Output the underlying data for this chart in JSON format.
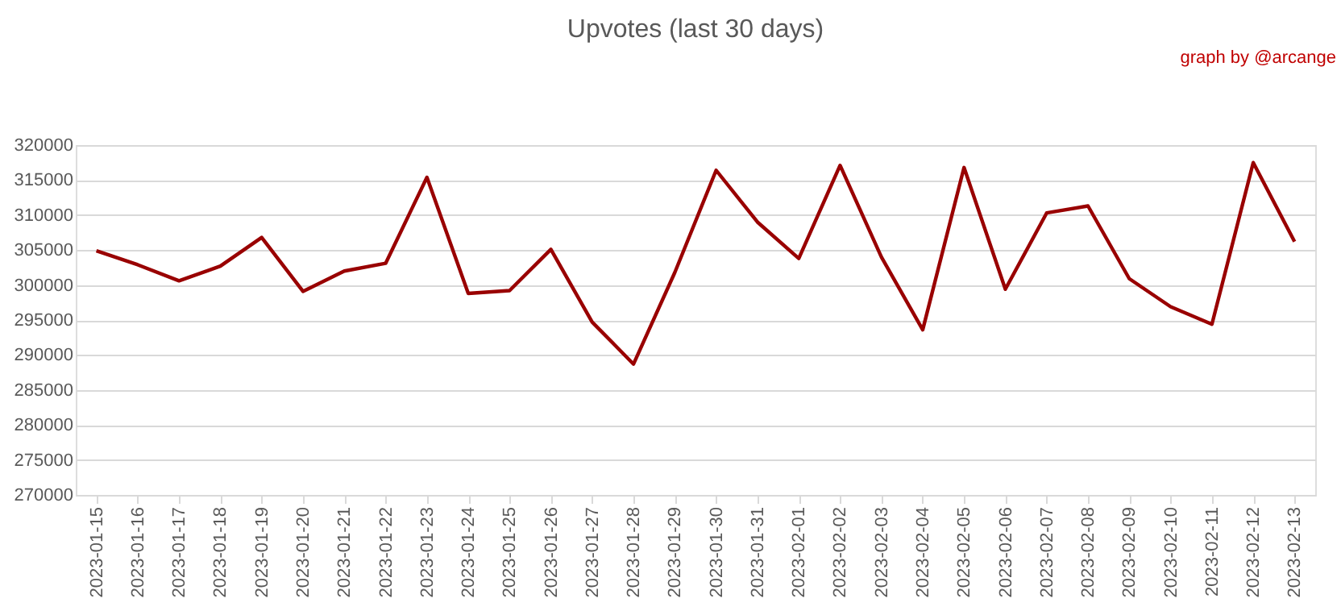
{
  "chart_data": {
    "type": "line",
    "title": "Upvotes (last 30 days)",
    "annotations": [
      "graph by @arcange"
    ],
    "categories": [
      "2023-01-15",
      "2023-01-16",
      "2023-01-17",
      "2023-01-18",
      "2023-01-19",
      "2023-01-20",
      "2023-01-21",
      "2023-01-22",
      "2023-01-23",
      "2023-01-24",
      "2023-01-25",
      "2023-01-26",
      "2023-01-27",
      "2023-01-28",
      "2023-01-29",
      "2023-01-30",
      "2023-01-31",
      "2023-02-01",
      "2023-02-02",
      "2023-02-03",
      "2023-02-04",
      "2023-02-05",
      "2023-02-06",
      "2023-02-07",
      "2023-02-08",
      "2023-02-09",
      "2023-02-10",
      "2023-02-11",
      "2023-02-12",
      "2023-02-13"
    ],
    "series": [
      {
        "color": "#990000",
        "values": [
          304900,
          302900,
          300600,
          302700,
          306800,
          299100,
          302000,
          303100,
          315400,
          298800,
          299200,
          305100,
          294700,
          288700,
          301800,
          316400,
          309000,
          303800,
          317100,
          304000,
          293600,
          316800,
          299400,
          310300,
          311300,
          300900,
          296900,
          294400,
          317500,
          306200
        ]
      }
    ],
    "ylim": [
      270000,
      320000
    ],
    "yticks": [
      270000,
      275000,
      280000,
      285000,
      290000,
      295000,
      300000,
      305000,
      310000,
      315000,
      320000
    ],
    "grid": "y",
    "marker": "none",
    "line_style": "solid"
  }
}
